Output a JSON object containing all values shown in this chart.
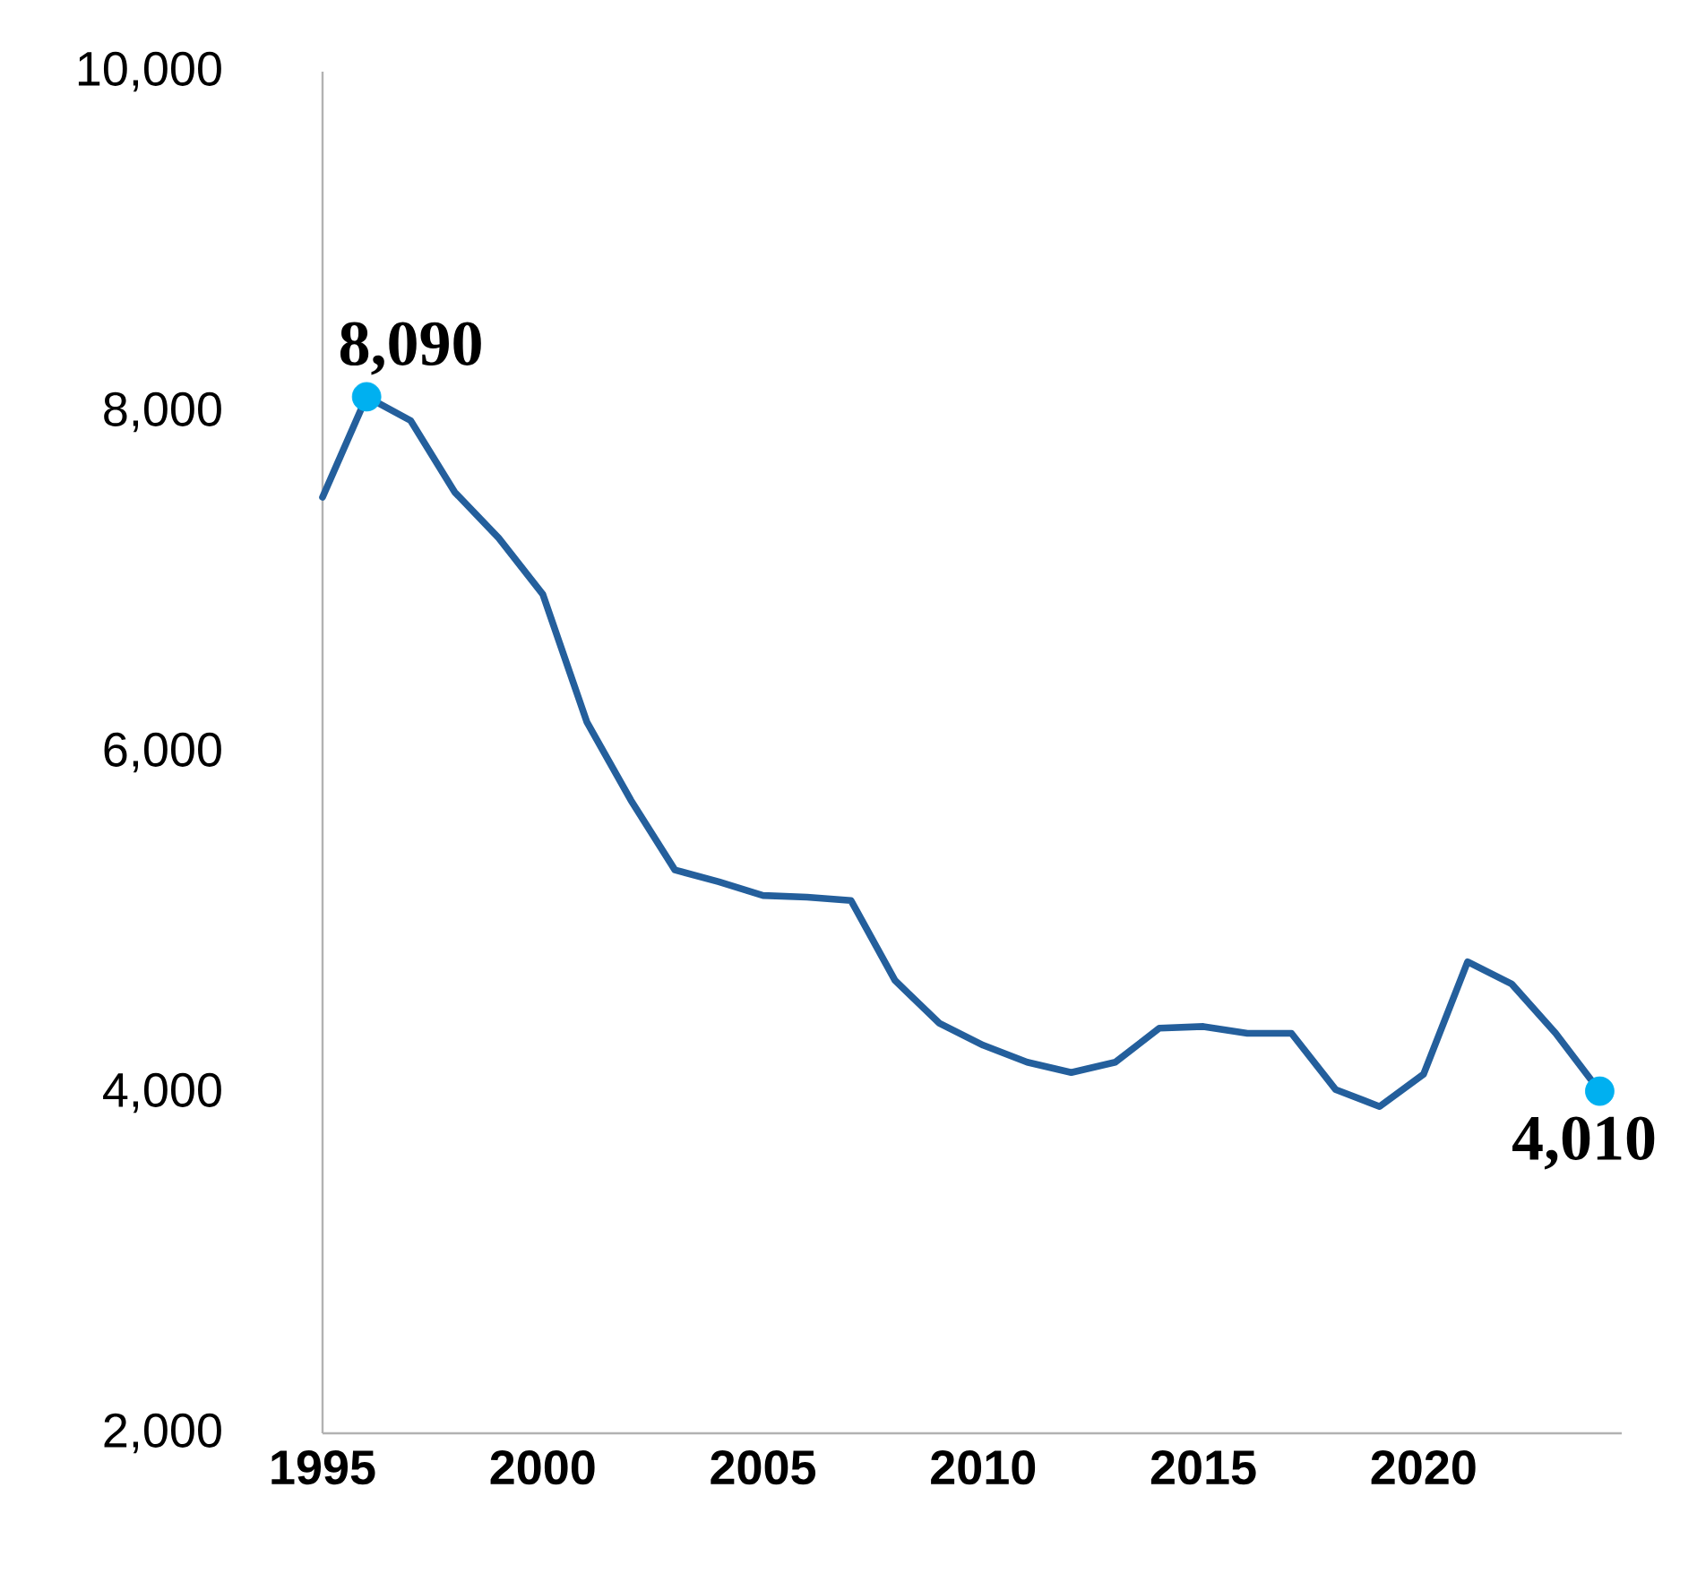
{
  "chart_data": {
    "type": "line",
    "series": [
      {
        "color": "#245f9c",
        "x": [
          1995,
          1996,
          1997,
          1998,
          1999,
          2000,
          2001,
          2002,
          2003,
          2004,
          2005,
          2006,
          2007,
          2008,
          2009,
          2010,
          2011,
          2012,
          2013,
          2014,
          2015,
          2016,
          2017,
          2018,
          2019,
          2020,
          2021,
          2022,
          2023,
          2024
        ],
        "values": [
          7500,
          8090,
          7950,
          7530,
          7260,
          6930,
          6180,
          5720,
          5310,
          5240,
          5160,
          5150,
          5130,
          4660,
          4410,
          4280,
          4180,
          4120,
          4180,
          4380,
          4390,
          4350,
          4350,
          4020,
          3920,
          4110,
          4770,
          4640,
          4350,
          4010
        ]
      },
      {
        "type": "scatter",
        "color": "#00b0f0",
        "marker": "circle",
        "x": [
          1996,
          2024
        ],
        "values": [
          8090,
          4010
        ],
        "value_labels": [
          "8,090",
          "4,010"
        ]
      }
    ],
    "xlim": [
      1995,
      2024.5
    ],
    "ylim": [
      2000,
      10000
    ],
    "xticks": [
      1995,
      2000,
      2005,
      2010,
      2015,
      2020
    ],
    "yticks": [
      {
        "value": 2000,
        "label": "2,000"
      },
      {
        "value": 4000,
        "label": "4,000"
      },
      {
        "value": 6000,
        "label": "6,000"
      },
      {
        "value": 8000,
        "label": "8,000"
      },
      {
        "value": 10000,
        "label": "10,000"
      }
    ],
    "grid": false
  }
}
